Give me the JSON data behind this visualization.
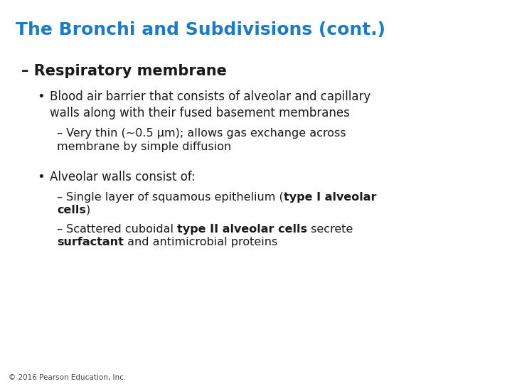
{
  "title": "The Bronchi and Subdivisions (cont.)",
  "title_color": "#1F7BBF",
  "title_fontsize": 18,
  "background_color": "#FFFFFF",
  "subtitle": "– Respiratory membrane",
  "subtitle_fontsize": 15,
  "body_color": "#1a1a1a",
  "body_fontsize": 12,
  "footer": "© 2016 Pearson Education, Inc.",
  "footer_fontsize": 7.5
}
